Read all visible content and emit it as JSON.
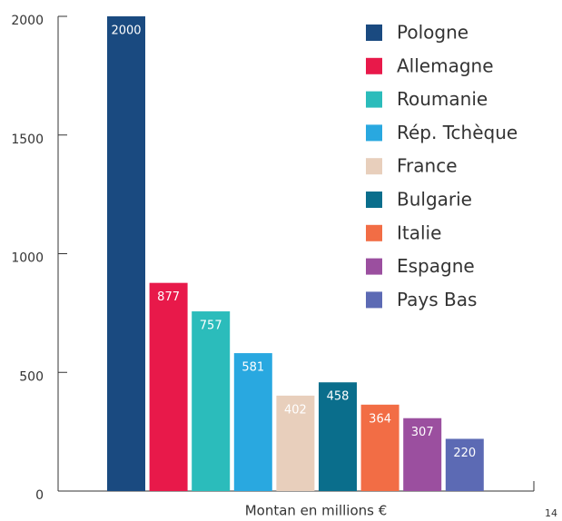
{
  "chart_data": {
    "type": "bar",
    "categories": [
      "Pologne",
      "Allemagne",
      "Roumanie",
      "Rép. Tchèque",
      "France",
      "Bulgarie",
      "Italie",
      "Espagne",
      "Pays Bas"
    ],
    "values": [
      2000,
      877,
      757,
      581,
      402,
      458,
      364,
      307,
      220
    ],
    "colors": [
      "#1a4a80",
      "#e8194a",
      "#2bbcbb",
      "#29a8e0",
      "#e8cfbc",
      "#0a6e8c",
      "#f26d45",
      "#9b4f9f",
      "#5c6ab4"
    ],
    "x_label": "Montan en millions €",
    "ylim": [
      0,
      2000
    ],
    "yticks": [
      0,
      500,
      1000,
      1500,
      2000
    ],
    "legend": "top-right"
  },
  "page_number": "14"
}
